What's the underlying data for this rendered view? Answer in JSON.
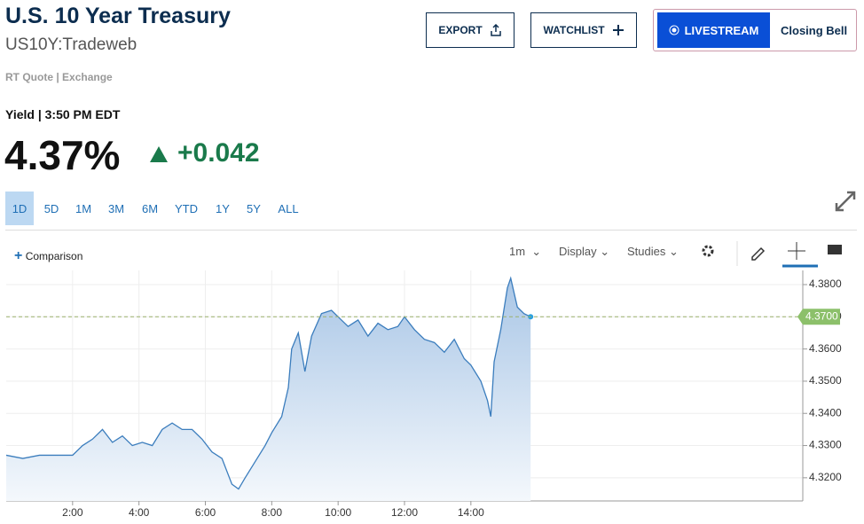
{
  "header": {
    "title": "U.S. 10 Year Treasury",
    "symbol": "US10Y:Tradeweb",
    "source": "RT Quote | Exchange",
    "quote_label": "Yield | 3:50 PM EDT",
    "price": "4.37%",
    "change": "+0.042"
  },
  "buttons": {
    "export": "EXPORT",
    "watchlist": "WATCHLIST",
    "livestream": "LIVESTREAM",
    "show": "Closing Bell"
  },
  "ranges": [
    "1D",
    "5D",
    "1M",
    "3M",
    "6M",
    "YTD",
    "1Y",
    "5Y",
    "ALL"
  ],
  "toolbar": {
    "comparison": "Comparison",
    "interval": "1m",
    "display": "Display",
    "studies": "Studies"
  },
  "chart_data": {
    "type": "area",
    "x": [
      0,
      0.5,
      1,
      1.5,
      2,
      2.3,
      2.6,
      2.9,
      3.2,
      3.5,
      3.8,
      4.1,
      4.4,
      4.7,
      5.0,
      5.3,
      5.6,
      5.9,
      6.2,
      6.5,
      6.8,
      7.0,
      7.2,
      7.5,
      7.8,
      8.0,
      8.3,
      8.5,
      8.6,
      8.8,
      9.0,
      9.2,
      9.5,
      9.8,
      10.0,
      10.3,
      10.6,
      10.9,
      11.2,
      11.5,
      11.8,
      12.0,
      12.3,
      12.6,
      12.9,
      13.2,
      13.5,
      13.8,
      14.0,
      14.3,
      14.5,
      14.6,
      14.7,
      14.9,
      15.1,
      15.2,
      15.4,
      15.6,
      15.8
    ],
    "values": [
      4.327,
      4.326,
      4.327,
      4.327,
      4.327,
      4.33,
      4.332,
      4.335,
      4.331,
      4.333,
      4.33,
      4.331,
      4.33,
      4.335,
      4.337,
      4.335,
      4.335,
      4.332,
      4.328,
      4.326,
      4.318,
      4.3165,
      4.32,
      4.325,
      4.33,
      4.334,
      4.339,
      4.348,
      4.36,
      4.365,
      4.353,
      4.364,
      4.371,
      4.372,
      4.37,
      4.367,
      4.369,
      4.364,
      4.368,
      4.366,
      4.367,
      4.37,
      4.366,
      4.363,
      4.362,
      4.359,
      4.363,
      4.357,
      4.355,
      4.35,
      4.344,
      4.339,
      4.356,
      4.366,
      4.379,
      4.382,
      4.373,
      4.371,
      4.37
    ],
    "color": "#3b7dbd",
    "xlim": [
      0,
      24
    ],
    "xticks": [
      {
        "value": 2,
        "label": "2:00"
      },
      {
        "value": 4,
        "label": "4:00"
      },
      {
        "value": 6,
        "label": "6:00"
      },
      {
        "value": 8,
        "label": "8:00"
      },
      {
        "value": 10,
        "label": "10:00"
      },
      {
        "value": 12,
        "label": "12:00"
      },
      {
        "value": 14,
        "label": "14:00"
      }
    ],
    "ylim": [
      4.3128,
      4.3844
    ],
    "yticks": [
      {
        "value": 4.32,
        "label": "4.3200"
      },
      {
        "value": 4.33,
        "label": "4.3300"
      },
      {
        "value": 4.34,
        "label": "4.3400"
      },
      {
        "value": 4.35,
        "label": "4.3500"
      },
      {
        "value": 4.36,
        "label": "4.3600"
      },
      {
        "value": 4.37,
        "label": "4.3700"
      },
      {
        "value": 4.38,
        "label": "4.3800"
      }
    ],
    "last_value": {
      "value": 4.37,
      "label": "4.3700"
    },
    "grid": true
  }
}
